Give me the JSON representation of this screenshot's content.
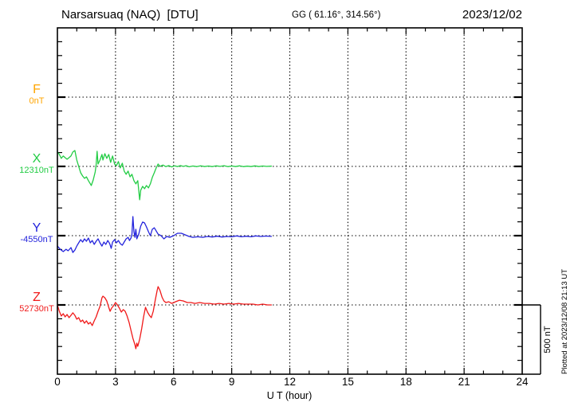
{
  "chart_data": {
    "type": "line",
    "title": "Narsarsuaq (NAQ)  [DTU]",
    "station_coords": "GG ( 61.16°, 314.56°)",
    "date": "2023/12/02",
    "xlabel": "U T (hour)",
    "xlim": [
      0,
      24
    ],
    "x_tick_labels": [
      "0",
      "3",
      "6",
      "9",
      "12",
      "15",
      "18",
      "21",
      "24"
    ],
    "x_major_step_hours": 3,
    "x_minor_step_hours": 1,
    "minor_tick_nT": 100,
    "row_spacing_nT": 500,
    "grid": "dotted",
    "scale_bar_label": "500 nT",
    "plotted_at": "Plotted at 2023/12/08 21:13 UT",
    "series": [
      {
        "name": "F",
        "color": "#FFA500",
        "baseline_value": 0,
        "baseline_label": "0nT",
        "points": []
      },
      {
        "name": "X",
        "color": "#22CC44",
        "baseline_value": 12310,
        "baseline_label": "12310nT",
        "points": [
          [
            0,
            12414
          ],
          [
            0.1,
            12396
          ],
          [
            0.2,
            12368
          ],
          [
            0.3,
            12385
          ],
          [
            0.4,
            12373
          ],
          [
            0.5,
            12362
          ],
          [
            0.6,
            12373
          ],
          [
            0.7,
            12385
          ],
          [
            0.8,
            12414
          ],
          [
            0.9,
            12425
          ],
          [
            1.0,
            12356
          ],
          [
            1.1,
            12310
          ],
          [
            1.2,
            12264
          ],
          [
            1.3,
            12241
          ],
          [
            1.4,
            12224
          ],
          [
            1.5,
            12235
          ],
          [
            1.6,
            12207
          ],
          [
            1.7,
            12184
          ],
          [
            1.75,
            12172
          ],
          [
            1.85,
            12212
          ],
          [
            1.95,
            12270
          ],
          [
            2.0,
            12322
          ],
          [
            2.05,
            12419
          ],
          [
            2.1,
            12327
          ],
          [
            2.2,
            12356
          ],
          [
            2.3,
            12396
          ],
          [
            2.35,
            12356
          ],
          [
            2.45,
            12402
          ],
          [
            2.55,
            12368
          ],
          [
            2.65,
            12396
          ],
          [
            2.75,
            12339
          ],
          [
            2.85,
            12385
          ],
          [
            2.95,
            12327
          ],
          [
            3.05,
            12316
          ],
          [
            3.15,
            12345
          ],
          [
            3.25,
            12299
          ],
          [
            3.35,
            12333
          ],
          [
            3.45,
            12276
          ],
          [
            3.55,
            12253
          ],
          [
            3.65,
            12276
          ],
          [
            3.75,
            12235
          ],
          [
            3.85,
            12253
          ],
          [
            3.95,
            12207
          ],
          [
            4.05,
            12184
          ],
          [
            4.15,
            12207
          ],
          [
            4.25,
            12069
          ],
          [
            4.3,
            12138
          ],
          [
            4.4,
            12166
          ],
          [
            4.5,
            12149
          ],
          [
            4.6,
            12172
          ],
          [
            4.7,
            12155
          ],
          [
            4.8,
            12184
          ],
          [
            4.9,
            12230
          ],
          [
            5.0,
            12264
          ],
          [
            5.1,
            12299
          ],
          [
            5.2,
            12327
          ],
          [
            5.3,
            12310
          ],
          [
            5.45,
            12320
          ],
          [
            5.6,
            12308
          ],
          [
            5.75,
            12316
          ],
          [
            5.9,
            12306
          ],
          [
            6.05,
            12314
          ],
          [
            6.2,
            12309
          ],
          [
            6.35,
            12316
          ],
          [
            6.5,
            12310
          ],
          [
            6.65,
            12315
          ],
          [
            6.8,
            12307
          ],
          [
            7.0,
            12313
          ],
          [
            7.2,
            12308
          ],
          [
            7.4,
            12314
          ],
          [
            7.6,
            12309
          ],
          [
            7.8,
            12313
          ],
          [
            8.0,
            12308
          ],
          [
            8.2,
            12314
          ],
          [
            8.4,
            12310
          ],
          [
            8.6,
            12315
          ],
          [
            8.8,
            12308
          ],
          [
            9.0,
            12313
          ],
          [
            9.2,
            12309
          ],
          [
            9.4,
            12314
          ],
          [
            9.6,
            12308
          ],
          [
            9.8,
            12312
          ],
          [
            10.0,
            12309
          ],
          [
            10.2,
            12314
          ],
          [
            10.4,
            12309
          ],
          [
            10.6,
            12313
          ],
          [
            10.8,
            12310
          ],
          [
            11.05,
            12312
          ]
        ]
      },
      {
        "name": "Y",
        "color": "#2323DC",
        "baseline_value": -4550,
        "baseline_label": "-4550nT",
        "points": [
          [
            0,
            -4625
          ],
          [
            0.15,
            -4648
          ],
          [
            0.3,
            -4665
          ],
          [
            0.45,
            -4648
          ],
          [
            0.55,
            -4659
          ],
          [
            0.7,
            -4636
          ],
          [
            0.8,
            -4671
          ],
          [
            0.9,
            -4654
          ],
          [
            1.0,
            -4625
          ],
          [
            1.1,
            -4602
          ],
          [
            1.2,
            -4579
          ],
          [
            1.3,
            -4596
          ],
          [
            1.4,
            -4573
          ],
          [
            1.5,
            -4590
          ],
          [
            1.6,
            -4567
          ],
          [
            1.7,
            -4602
          ],
          [
            1.8,
            -4585
          ],
          [
            1.9,
            -4613
          ],
          [
            2.0,
            -4590
          ],
          [
            2.1,
            -4573
          ],
          [
            2.2,
            -4602
          ],
          [
            2.3,
            -4625
          ],
          [
            2.4,
            -4596
          ],
          [
            2.5,
            -4613
          ],
          [
            2.6,
            -4585
          ],
          [
            2.7,
            -4608
          ],
          [
            2.78,
            -4642
          ],
          [
            2.85,
            -4596
          ],
          [
            2.95,
            -4579
          ],
          [
            3.05,
            -4602
          ],
          [
            3.15,
            -4585
          ],
          [
            3.25,
            -4608
          ],
          [
            3.35,
            -4619
          ],
          [
            3.45,
            -4596
          ],
          [
            3.55,
            -4573
          ],
          [
            3.65,
            -4562
          ],
          [
            3.72,
            -4585
          ],
          [
            3.8,
            -4567
          ],
          [
            3.85,
            -4539
          ],
          [
            3.9,
            -4412
          ],
          [
            3.95,
            -4521
          ],
          [
            4.0,
            -4562
          ],
          [
            4.05,
            -4504
          ],
          [
            4.1,
            -4573
          ],
          [
            4.2,
            -4539
          ],
          [
            4.3,
            -4481
          ],
          [
            4.4,
            -4452
          ],
          [
            4.5,
            -4458
          ],
          [
            4.6,
            -4487
          ],
          [
            4.7,
            -4521
          ],
          [
            4.8,
            -4550
          ],
          [
            4.9,
            -4504
          ],
          [
            5.0,
            -4493
          ],
          [
            5.1,
            -4516
          ],
          [
            5.2,
            -4539
          ],
          [
            5.35,
            -4550
          ],
          [
            5.5,
            -4573
          ],
          [
            5.65,
            -4556
          ],
          [
            5.8,
            -4562
          ],
          [
            6.0,
            -4550
          ],
          [
            6.2,
            -4533
          ],
          [
            6.4,
            -4533
          ],
          [
            6.6,
            -4544
          ],
          [
            6.8,
            -4556
          ],
          [
            7.0,
            -4562
          ],
          [
            7.25,
            -4558
          ],
          [
            7.5,
            -4562
          ],
          [
            7.75,
            -4556
          ],
          [
            8.0,
            -4560
          ],
          [
            8.25,
            -4554
          ],
          [
            8.5,
            -4560
          ],
          [
            8.75,
            -4556
          ],
          [
            9.0,
            -4558
          ],
          [
            9.25,
            -4552
          ],
          [
            9.5,
            -4558
          ],
          [
            9.75,
            -4554
          ],
          [
            10.0,
            -4558
          ],
          [
            10.25,
            -4552
          ],
          [
            10.5,
            -4556
          ],
          [
            10.75,
            -4553
          ],
          [
            11.05,
            -4555
          ]
        ]
      },
      {
        "name": "Z",
        "color": "#F01919",
        "baseline_value": 52730,
        "baseline_label": "52730nT",
        "points": [
          [
            0,
            52730
          ],
          [
            0.1,
            52684
          ],
          [
            0.2,
            52650
          ],
          [
            0.3,
            52667
          ],
          [
            0.4,
            52644
          ],
          [
            0.5,
            52661
          ],
          [
            0.6,
            52638
          ],
          [
            0.7,
            52655
          ],
          [
            0.8,
            52673
          ],
          [
            0.9,
            52655
          ],
          [
            1.0,
            52627
          ],
          [
            1.1,
            52638
          ],
          [
            1.2,
            52609
          ],
          [
            1.3,
            52621
          ],
          [
            1.4,
            52598
          ],
          [
            1.5,
            52615
          ],
          [
            1.6,
            52592
          ],
          [
            1.7,
            52604
          ],
          [
            1.8,
            52581
          ],
          [
            1.9,
            52615
          ],
          [
            2.0,
            52644
          ],
          [
            2.1,
            52684
          ],
          [
            2.2,
            52719
          ],
          [
            2.3,
            52782
          ],
          [
            2.35,
            52793
          ],
          [
            2.45,
            52782
          ],
          [
            2.55,
            52759
          ],
          [
            2.65,
            52713
          ],
          [
            2.72,
            52684
          ],
          [
            2.8,
            52707
          ],
          [
            2.9,
            52724
          ],
          [
            3.0,
            52747
          ],
          [
            3.1,
            52730
          ],
          [
            3.2,
            52707
          ],
          [
            3.3,
            52678
          ],
          [
            3.4,
            52696
          ],
          [
            3.5,
            52684
          ],
          [
            3.6,
            52650
          ],
          [
            3.7,
            52604
          ],
          [
            3.8,
            52546
          ],
          [
            3.9,
            52489
          ],
          [
            4.0,
            52443
          ],
          [
            4.05,
            52414
          ],
          [
            4.1,
            52454
          ],
          [
            4.15,
            52431
          ],
          [
            4.25,
            52483
          ],
          [
            4.35,
            52558
          ],
          [
            4.45,
            52644
          ],
          [
            4.55,
            52713
          ],
          [
            4.65,
            52678
          ],
          [
            4.75,
            52655
          ],
          [
            4.85,
            52638
          ],
          [
            4.95,
            52684
          ],
          [
            5.05,
            52764
          ],
          [
            5.15,
            52834
          ],
          [
            5.2,
            52862
          ],
          [
            5.3,
            52834
          ],
          [
            5.4,
            52787
          ],
          [
            5.5,
            52759
          ],
          [
            5.6,
            52747
          ],
          [
            5.75,
            52753
          ],
          [
            5.9,
            52741
          ],
          [
            6.1,
            52753
          ],
          [
            6.3,
            52764
          ],
          [
            6.5,
            52759
          ],
          [
            6.7,
            52747
          ],
          [
            6.9,
            52747
          ],
          [
            7.1,
            52741
          ],
          [
            7.35,
            52747
          ],
          [
            7.6,
            52741
          ],
          [
            7.85,
            52741
          ],
          [
            8.1,
            52736
          ],
          [
            8.35,
            52741
          ],
          [
            8.6,
            52736
          ],
          [
            8.85,
            52741
          ],
          [
            9.1,
            52736
          ],
          [
            9.35,
            52741
          ],
          [
            9.6,
            52736
          ],
          [
            9.85,
            52736
          ],
          [
            10.1,
            52736
          ],
          [
            10.35,
            52730
          ],
          [
            10.6,
            52736
          ],
          [
            10.85,
            52730
          ],
          [
            11.05,
            52730
          ]
        ]
      }
    ]
  }
}
